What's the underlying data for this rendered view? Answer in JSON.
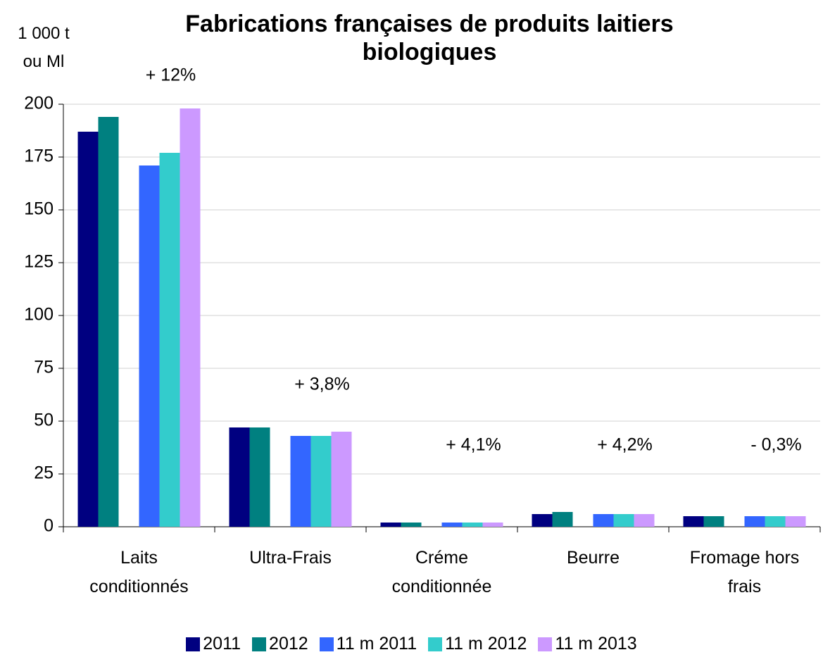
{
  "chart_data": {
    "type": "bar",
    "title": "Fabrications françaises de produits laitiers biologiques",
    "y_label": "1 000 t ou Ml",
    "categories": [
      "Laits conditionnés",
      "Ultra-Frais",
      "Créme conditionnée",
      "Beurre",
      "Fromage hors frais"
    ],
    "series": [
      {
        "name": "2011",
        "color": "#000080",
        "values": [
          187,
          47,
          2,
          6,
          5
        ]
      },
      {
        "name": "2012",
        "color": "#008080",
        "values": [
          194,
          47,
          2,
          7,
          5
        ]
      },
      {
        "name": "11 m 2011",
        "color": "#3366ff",
        "values": [
          171,
          43,
          2,
          6,
          5
        ]
      },
      {
        "name": "11 m 2012",
        "color": "#33cccc",
        "values": [
          177,
          43,
          2,
          6,
          5
        ]
      },
      {
        "name": "11 m 2013",
        "color": "#cc99ff",
        "values": [
          198,
          45,
          2,
          6,
          5
        ]
      }
    ],
    "annotations": [
      "+ 12%",
      "+ 3,8%",
      "+ 4,1%",
      "+ 4,2%",
      "- 0,3%"
    ],
    "ylim": [
      0,
      200
    ],
    "yticks": [
      0,
      25,
      50,
      75,
      100,
      125,
      150,
      175,
      200
    ],
    "grid": true,
    "legend": "bottom"
  }
}
